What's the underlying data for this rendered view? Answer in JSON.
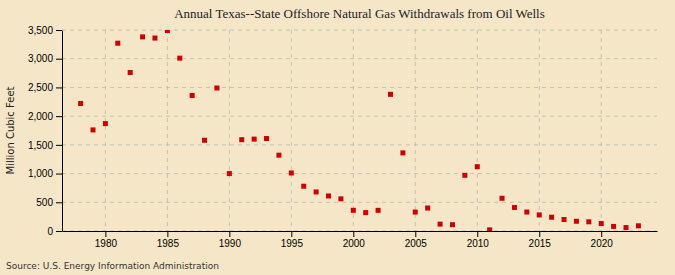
{
  "chart_data": {
    "type": "scatter",
    "title": "Annual Texas--State Offshore Natural Gas Withdrawals from Oil Wells",
    "ylabel": "Million Cubic Feet",
    "source": "Source: U.S. Energy Information Administration",
    "x": [
      1978,
      1979,
      1980,
      1981,
      1982,
      1983,
      1984,
      1985,
      1986,
      1987,
      1988,
      1989,
      1990,
      1991,
      1992,
      1993,
      1994,
      1995,
      1996,
      1997,
      1998,
      1999,
      2000,
      2001,
      2002,
      2003,
      2004,
      2005,
      2006,
      2007,
      2008,
      2009,
      2010,
      2011,
      2012,
      2013,
      2014,
      2015,
      2016,
      2017,
      2018,
      2019,
      2020,
      2021,
      2022,
      2023
    ],
    "values": [
      2220,
      1760,
      1870,
      3270,
      2760,
      3380,
      3360,
      3490,
      3010,
      2360,
      1580,
      2490,
      1000,
      1590,
      1600,
      1610,
      1320,
      1010,
      780,
      680,
      610,
      560,
      360,
      320,
      360,
      2380,
      1360,
      330,
      400,
      120,
      110,
      970,
      1120,
      20,
      570,
      410,
      330,
      280,
      240,
      200,
      170,
      160,
      130,
      80,
      60,
      90
    ],
    "color": "#cc0000",
    "marker": "square",
    "xlim": [
      1976.5,
      2024.5
    ],
    "ylim": [
      0,
      3500
    ],
    "xticks": [
      1980,
      1985,
      1990,
      1995,
      2000,
      2005,
      2010,
      2015,
      2020
    ],
    "yticks": [
      0,
      500,
      {
        "value": 1000,
        "label": "1,000"
      },
      {
        "value": 1500,
        "label": "1,500"
      },
      {
        "value": 2000,
        "label": "2,000"
      },
      {
        "value": 2500,
        "label": "2,500"
      },
      {
        "value": 3000,
        "label": "3,000"
      },
      {
        "value": 3500,
        "label": "3,500"
      }
    ],
    "grid": true
  }
}
